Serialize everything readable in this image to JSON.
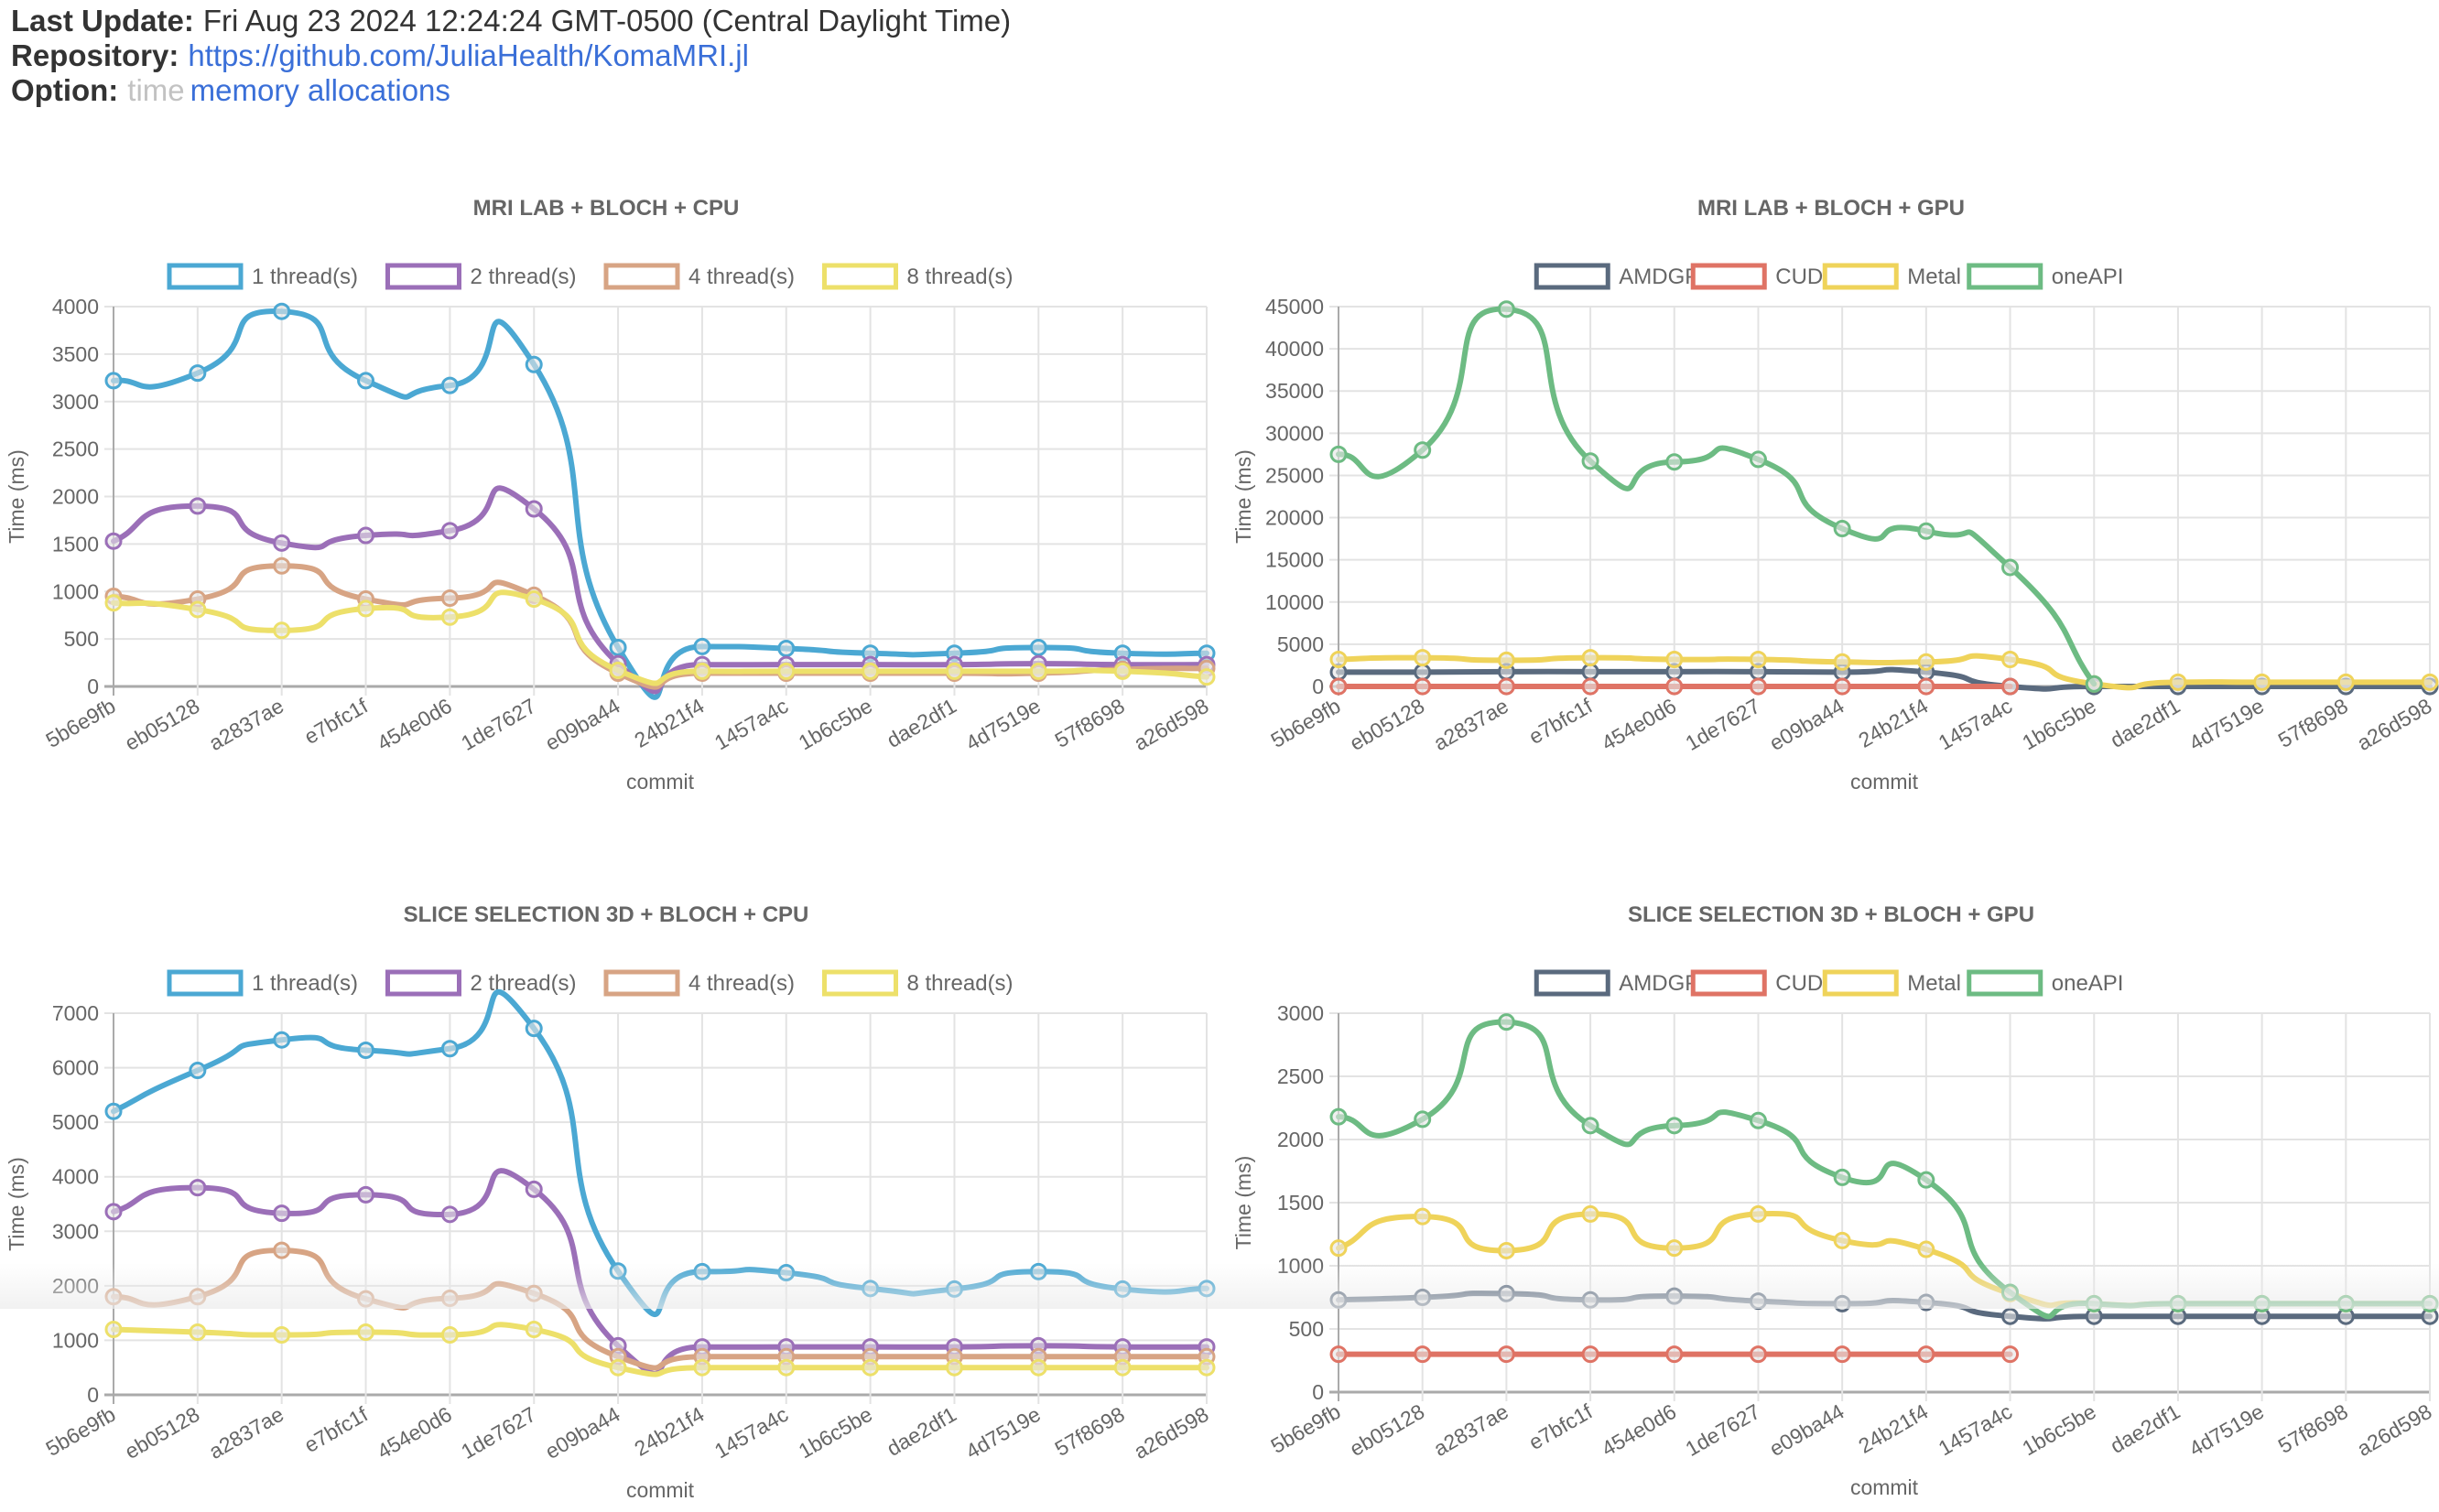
{
  "header": {
    "last_update_label": "Last Update:",
    "last_update_value": "Fri Aug 23 2024 12:24:24 GMT-0500 (Central Daylight Time)",
    "repository_label": "Repository:",
    "repository_link": "https://github.com/JuliaHealth/KomaMRI.jl",
    "option_label": "Option:",
    "options": [
      {
        "label": "time",
        "active": false
      },
      {
        "label": "memory allocations",
        "active": true
      }
    ]
  },
  "colors": {
    "1 thread(s)": "#4ba8d3",
    "2 thread(s)": "#9b6fb8",
    "4 thread(s)": "#d7a484",
    "8 thread(s)": "#ede06a",
    "AMDGPU": "#5a6a7e",
    "CUDA": "#df7365",
    "Metal": "#efd35a",
    "oneAPI": "#6dbb83"
  },
  "chart_data": [
    {
      "type": "line",
      "title": "MRI LAB + BLOCH + CPU",
      "xlabel": "commit",
      "ylabel": "Time (ms)",
      "ylim": [
        0,
        4000
      ],
      "yticks": [
        0,
        500,
        1000,
        1500,
        2000,
        2500,
        3000,
        3500,
        4000
      ],
      "grid": true,
      "legend": "top-center",
      "categories": [
        "5b6e9fb",
        "eb05128",
        "a2837ae",
        "e7bfc1f",
        "454e0d6",
        "1de7627",
        "e09ba44",
        "24b21f4",
        "1457a4c",
        "1b6c5be",
        "dae2df1",
        "4d7519e",
        "57f8698",
        "a26d598"
      ],
      "series": [
        {
          "name": "1 thread(s)",
          "values": [
            3220,
            3300,
            3950,
            3220,
            3170,
            3390,
            410,
            420,
            400,
            350,
            350,
            410,
            350,
            350
          ]
        },
        {
          "name": "2 thread(s)",
          "values": [
            1530,
            1900,
            1510,
            1590,
            1640,
            1870,
            240,
            230,
            230,
            230,
            230,
            240,
            230,
            230
          ]
        },
        {
          "name": "4 thread(s)",
          "values": [
            950,
            920,
            1270,
            920,
            930,
            960,
            140,
            140,
            140,
            140,
            140,
            140,
            180,
            190
          ]
        },
        {
          "name": "8 thread(s)",
          "values": [
            880,
            810,
            590,
            820,
            730,
            920,
            170,
            160,
            160,
            160,
            160,
            160,
            160,
            100
          ]
        }
      ]
    },
    {
      "type": "line",
      "title": "MRI LAB + BLOCH + GPU",
      "xlabel": "commit",
      "ylabel": "Time (ms)",
      "ylim": [
        0,
        45000
      ],
      "yticks": [
        0,
        5000,
        10000,
        15000,
        20000,
        25000,
        30000,
        35000,
        40000,
        45000
      ],
      "grid": true,
      "legend": "top-center",
      "categories": [
        "5b6e9fb",
        "eb05128",
        "a2837ae",
        "e7bfc1f",
        "454e0d6",
        "1de7627",
        "e09ba44",
        "24b21f4",
        "1457a4c",
        "1b6c5be",
        "dae2df1",
        "4d7519e",
        "57f8698",
        "a26d598"
      ],
      "series": [
        {
          "name": "AMDGPU",
          "values": [
            1700,
            1700,
            1750,
            1750,
            1750,
            1750,
            1700,
            1700,
            0,
            0,
            0,
            0,
            0,
            0
          ]
        },
        {
          "name": "CUDA",
          "values": [
            0,
            0,
            0,
            0,
            0,
            0,
            0,
            0,
            0,
            null,
            null,
            null,
            null,
            null
          ]
        },
        {
          "name": "Metal",
          "values": [
            3200,
            3400,
            3100,
            3400,
            3200,
            3200,
            2900,
            2900,
            3200,
            300,
            500,
            500,
            500,
            500
          ]
        },
        {
          "name": "oneAPI",
          "values": [
            27500,
            28000,
            44700,
            26700,
            26600,
            26900,
            18700,
            18400,
            14100,
            300,
            null,
            null,
            null,
            null
          ]
        }
      ]
    },
    {
      "type": "line",
      "title": "SLICE SELECTION 3D + BLOCH + CPU",
      "xlabel": "commit",
      "ylabel": "Time (ms)",
      "ylim": [
        0,
        7000
      ],
      "yticks": [
        0,
        1000,
        2000,
        3000,
        4000,
        5000,
        6000,
        7000
      ],
      "grid": true,
      "legend": "top-center",
      "categories": [
        "5b6e9fb",
        "eb05128",
        "a2837ae",
        "e7bfc1f",
        "454e0d6",
        "1de7627",
        "e09ba44",
        "24b21f4",
        "1457a4c",
        "1b6c5be",
        "dae2df1",
        "4d7519e",
        "57f8698",
        "a26d598"
      ],
      "series": [
        {
          "name": "1 thread(s)",
          "values": [
            5200,
            5950,
            6510,
            6320,
            6350,
            6720,
            2270,
            2260,
            2240,
            1950,
            1940,
            2260,
            1940,
            1950
          ]
        },
        {
          "name": "2 thread(s)",
          "values": [
            3360,
            3800,
            3330,
            3670,
            3310,
            3770,
            900,
            880,
            880,
            880,
            880,
            900,
            880,
            880
          ]
        },
        {
          "name": "4 thread(s)",
          "values": [
            1800,
            1800,
            2650,
            1760,
            1770,
            1860,
            700,
            700,
            700,
            700,
            700,
            700,
            700,
            700
          ]
        },
        {
          "name": "8 thread(s)",
          "values": [
            1200,
            1150,
            1100,
            1150,
            1100,
            1200,
            500,
            500,
            500,
            500,
            500,
            500,
            500,
            500
          ]
        }
      ]
    },
    {
      "type": "line",
      "title": "SLICE SELECTION 3D + BLOCH + GPU",
      "xlabel": "commit",
      "ylabel": "Time (ms)",
      "ylim": [
        0,
        3000
      ],
      "yticks": [
        0,
        500,
        1000,
        1500,
        2000,
        2500,
        3000
      ],
      "grid": true,
      "legend": "top-center",
      "categories": [
        "5b6e9fb",
        "eb05128",
        "a2837ae",
        "e7bfc1f",
        "454e0d6",
        "1de7627",
        "e09ba44",
        "24b21f4",
        "1457a4c",
        "1b6c5be",
        "dae2df1",
        "4d7519e",
        "57f8698",
        "a26d598"
      ],
      "series": [
        {
          "name": "AMDGPU",
          "values": [
            730,
            750,
            780,
            730,
            760,
            720,
            700,
            710,
            600,
            600,
            600,
            600,
            600,
            600
          ]
        },
        {
          "name": "CUDA",
          "values": [
            300,
            300,
            300,
            300,
            300,
            300,
            300,
            300,
            300,
            null,
            null,
            null,
            null,
            null
          ]
        },
        {
          "name": "Metal",
          "values": [
            1140,
            1390,
            1120,
            1410,
            1140,
            1410,
            1200,
            1130,
            780,
            700,
            700,
            700,
            700,
            700
          ]
        },
        {
          "name": "oneAPI",
          "values": [
            2180,
            2160,
            2930,
            2110,
            2110,
            2150,
            1700,
            1680,
            790,
            700,
            700,
            700,
            700,
            700
          ]
        }
      ]
    }
  ]
}
